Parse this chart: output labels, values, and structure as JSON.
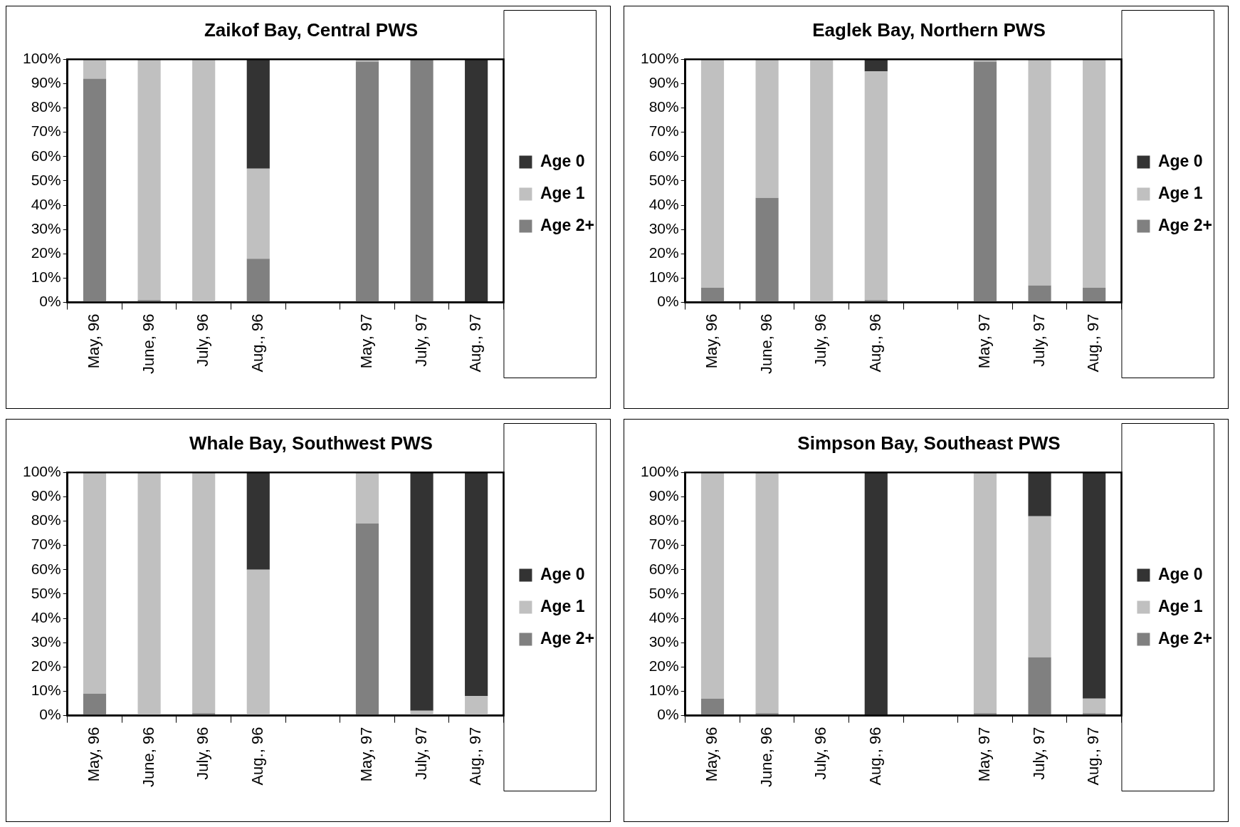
{
  "chart_data": [
    {
      "type": "bar",
      "title": "Zaikof Bay, Central PWS",
      "stacked": true,
      "legend": "right",
      "categories": [
        "May, 96",
        "June, 96",
        "July, 96",
        "Aug., 96",
        null,
        "May, 97",
        "July, 97",
        "Aug., 97"
      ],
      "ylim": [
        0,
        100
      ],
      "yticks": [
        {
          "value": 0,
          "label": "0%"
        },
        {
          "value": 10,
          "label": "10%"
        },
        {
          "value": 20,
          "label": "20%"
        },
        {
          "value": 30,
          "label": "30%"
        },
        {
          "value": 40,
          "label": "40%"
        },
        {
          "value": 50,
          "label": "50%"
        },
        {
          "value": 60,
          "label": "60%"
        },
        {
          "value": 70,
          "label": "70%"
        },
        {
          "value": 80,
          "label": "80%"
        },
        {
          "value": 90,
          "label": "90%"
        },
        {
          "value": 100,
          "label": "100%"
        }
      ],
      "series": [
        {
          "name": "Age 2+",
          "color": "#808080",
          "values": [
            92,
            1,
            0,
            18,
            null,
            99,
            100,
            0
          ]
        },
        {
          "name": "Age 1",
          "color": "#c0c0c0",
          "values": [
            8,
            99,
            100,
            37,
            null,
            1,
            0,
            0
          ]
        },
        {
          "name": "Age 0",
          "color": "#333333",
          "values": [
            0,
            0,
            0,
            45,
            null,
            0,
            0,
            100
          ]
        }
      ]
    },
    {
      "type": "bar",
      "title": "Eaglek Bay, Northern PWS",
      "stacked": true,
      "legend": "right",
      "categories": [
        "May, 96",
        "June, 96",
        "July, 96",
        "Aug., 96",
        null,
        "May, 97",
        "July, 97",
        "Aug., 97"
      ],
      "ylim": [
        0,
        100
      ],
      "yticks": [
        {
          "value": 0,
          "label": "0%"
        },
        {
          "value": 10,
          "label": "10%"
        },
        {
          "value": 20,
          "label": "20%"
        },
        {
          "value": 30,
          "label": "30%"
        },
        {
          "value": 40,
          "label": "40%"
        },
        {
          "value": 50,
          "label": "50%"
        },
        {
          "value": 60,
          "label": "60%"
        },
        {
          "value": 70,
          "label": "70%"
        },
        {
          "value": 80,
          "label": "80%"
        },
        {
          "value": 90,
          "label": "90%"
        },
        {
          "value": 100,
          "label": "100%"
        }
      ],
      "series": [
        {
          "name": "Age 2+",
          "color": "#808080",
          "values": [
            6,
            43,
            0,
            1,
            null,
            99,
            7,
            6
          ]
        },
        {
          "name": "Age 1",
          "color": "#c0c0c0",
          "values": [
            94,
            57,
            100,
            94,
            null,
            1,
            93,
            94
          ]
        },
        {
          "name": "Age 0",
          "color": "#333333",
          "values": [
            0,
            0,
            0,
            5,
            null,
            0,
            0,
            0
          ]
        }
      ]
    },
    {
      "type": "bar",
      "title": "Whale Bay, Southwest PWS",
      "stacked": true,
      "legend": "right",
      "categories": [
        "May, 96",
        "June, 96",
        "July, 96",
        "Aug., 96",
        null,
        "May, 97",
        "July, 97",
        "Aug., 97"
      ],
      "ylim": [
        0,
        100
      ],
      "yticks": [
        {
          "value": 0,
          "label": "0%"
        },
        {
          "value": 10,
          "label": "10%"
        },
        {
          "value": 20,
          "label": "20%"
        },
        {
          "value": 30,
          "label": "30%"
        },
        {
          "value": 40,
          "label": "40%"
        },
        {
          "value": 50,
          "label": "50%"
        },
        {
          "value": 60,
          "label": "60%"
        },
        {
          "value": 70,
          "label": "70%"
        },
        {
          "value": 80,
          "label": "80%"
        },
        {
          "value": 90,
          "label": "90%"
        },
        {
          "value": 100,
          "label": "100%"
        }
      ],
      "series": [
        {
          "name": "Age 2+",
          "color": "#808080",
          "values": [
            9,
            0,
            1,
            0,
            null,
            79,
            0,
            0
          ]
        },
        {
          "name": "Age 1",
          "color": "#c0c0c0",
          "values": [
            91,
            100,
            99,
            60,
            null,
            21,
            2,
            8
          ]
        },
        {
          "name": "Age 0",
          "color": "#333333",
          "values": [
            0,
            0,
            0,
            40,
            null,
            0,
            98,
            92
          ]
        }
      ]
    },
    {
      "type": "bar",
      "title": "Simpson Bay, Southeast PWS",
      "stacked": true,
      "legend": "right",
      "categories": [
        "May, 96",
        "June, 96",
        "July, 96",
        "Aug., 96",
        null,
        "May, 97",
        "July, 97",
        "Aug., 97"
      ],
      "ylim": [
        0,
        100
      ],
      "yticks": [
        {
          "value": 0,
          "label": "0%"
        },
        {
          "value": 10,
          "label": "10%"
        },
        {
          "value": 20,
          "label": "20%"
        },
        {
          "value": 30,
          "label": "30%"
        },
        {
          "value": 40,
          "label": "40%"
        },
        {
          "value": 50,
          "label": "50%"
        },
        {
          "value": 60,
          "label": "60%"
        },
        {
          "value": 70,
          "label": "70%"
        },
        {
          "value": 80,
          "label": "80%"
        },
        {
          "value": 90,
          "label": "90%"
        },
        {
          "value": 100,
          "label": "100%"
        }
      ],
      "series": [
        {
          "name": "Age 2+",
          "color": "#808080",
          "values": [
            7,
            1,
            null,
            0,
            null,
            1,
            24,
            1
          ]
        },
        {
          "name": "Age 1",
          "color": "#c0c0c0",
          "values": [
            93,
            99,
            null,
            0,
            null,
            99,
            58,
            6
          ]
        },
        {
          "name": "Age 0",
          "color": "#333333",
          "values": [
            0,
            0,
            null,
            100,
            null,
            0,
            18,
            93
          ]
        }
      ]
    }
  ]
}
